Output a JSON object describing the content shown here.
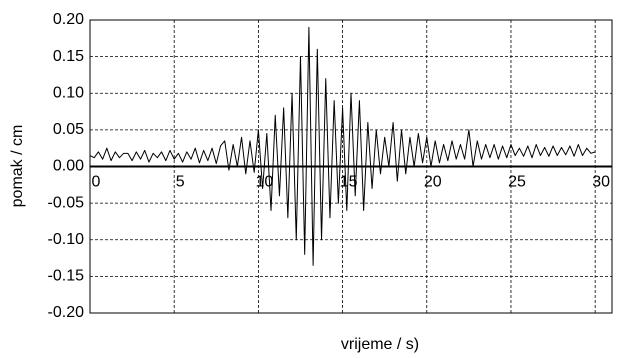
{
  "chart_data": {
    "type": "line",
    "xlabel": "vrijeme / s)",
    "ylabel": "pomak / cm",
    "xlim": [
      0,
      31
    ],
    "xticks": [
      0,
      5,
      10,
      15,
      20,
      25,
      30
    ],
    "ylim": [
      -0.2,
      0.2
    ],
    "yticks": [
      {
        "value": 0.2,
        "label": "0.20"
      },
      0.15,
      {
        "value": 0.1,
        "label": "0.10"
      },
      0.05,
      {
        "value": 0,
        "label": "0.00"
      },
      -0.05,
      {
        "value": -0.1,
        "label": "-0.10"
      },
      -0.15,
      {
        "value": -0.2,
        "label": "-0.20"
      }
    ],
    "grid": true,
    "series": [
      {
        "color": "#000000",
        "x": [
          0,
          0.25,
          0.5,
          0.75,
          1,
          1.25,
          1.5,
          1.75,
          2,
          2.25,
          2.5,
          2.75,
          3,
          3.25,
          3.5,
          3.75,
          4,
          4.25,
          4.5,
          4.75,
          5,
          5.25,
          5.5,
          5.75,
          6,
          6.25,
          6.5,
          6.75,
          7,
          7.25,
          7.5,
          7.75,
          8,
          8.25,
          8.5,
          8.75,
          9,
          9.25,
          9.5,
          9.75,
          10,
          10.25,
          10.5,
          10.75,
          11,
          11.25,
          11.5,
          11.75,
          12,
          12.25,
          12.5,
          12.75,
          13,
          13.25,
          13.5,
          13.75,
          14,
          14.25,
          14.5,
          14.75,
          15,
          15.25,
          15.5,
          15.75,
          16,
          16.25,
          16.5,
          16.75,
          17,
          17.25,
          17.5,
          17.75,
          18,
          18.25,
          18.5,
          18.75,
          19,
          19.25,
          19.5,
          19.75,
          20,
          20.25,
          20.5,
          20.75,
          21,
          21.25,
          21.5,
          21.75,
          22,
          22.25,
          22.5,
          22.75,
          23,
          23.25,
          23.5,
          23.75,
          24,
          24.25,
          24.5,
          24.75,
          25,
          25.25,
          25.5,
          25.75,
          26,
          26.25,
          26.5,
          26.75,
          27,
          27.25,
          27.5,
          27.75,
          28,
          28.25,
          28.5,
          28.75,
          29,
          29.25,
          29.5,
          29.75,
          30
        ],
        "values": [
          0.015,
          0.012,
          0.02,
          0.01,
          0.025,
          0.008,
          0.02,
          0.012,
          0.018,
          0.018,
          0.008,
          0.02,
          0.01,
          0.022,
          0.006,
          0.018,
          0.012,
          0.02,
          0.008,
          0.022,
          0.01,
          0.018,
          0.006,
          0.02,
          0.01,
          0.025,
          0.005,
          0.022,
          0.008,
          0.025,
          0.004,
          0.028,
          0.035,
          -0.005,
          0.03,
          0.0,
          0.04,
          -0.01,
          0.035,
          -0.008,
          0.05,
          -0.03,
          0.045,
          -0.06,
          0.07,
          -0.04,
          0.08,
          -0.07,
          0.1,
          -0.1,
          0.15,
          -0.12,
          0.19,
          -0.135,
          0.16,
          -0.1,
          0.12,
          -0.07,
          0.09,
          -0.05,
          0.08,
          -0.06,
          0.1,
          -0.04,
          0.09,
          -0.06,
          0.06,
          -0.03,
          0.05,
          -0.01,
          0.04,
          0.0,
          0.06,
          -0.02,
          0.05,
          -0.01,
          0.04,
          0.0,
          0.045,
          0.005,
          0.04,
          0.0,
          0.035,
          0.005,
          0.03,
          0.008,
          0.035,
          0.01,
          0.03,
          0.01,
          0.05,
          0.0,
          0.035,
          0.01,
          0.03,
          0.012,
          0.03,
          0.01,
          0.028,
          0.012,
          0.03,
          0.015,
          0.025,
          0.014,
          0.028,
          0.012,
          0.03,
          0.015,
          0.026,
          0.014,
          0.028,
          0.015,
          0.026,
          0.016,
          0.028,
          0.014,
          0.03,
          0.015,
          0.025,
          0.018,
          0.02
        ]
      }
    ]
  }
}
